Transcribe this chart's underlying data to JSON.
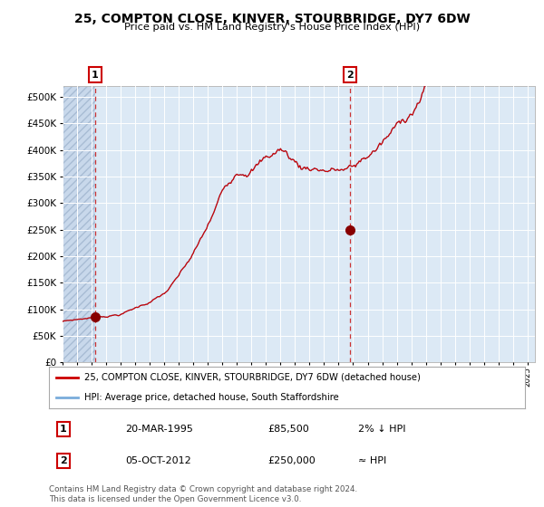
{
  "title_line1": "25, COMPTON CLOSE, KINVER, STOURBRIDGE, DY7 6DW",
  "title_line2": "Price paid vs. HM Land Registry's House Price Index (HPI)",
  "bg_color": "#dce9f5",
  "red_line_color": "#cc0000",
  "blue_line_color": "#7aaddb",
  "marker_color": "#880000",
  "vline_color": "#cc3333",
  "ylim": [
    0,
    520000
  ],
  "yticks": [
    0,
    50000,
    100000,
    150000,
    200000,
    250000,
    300000,
    350000,
    400000,
    450000,
    500000
  ],
  "ytick_labels": [
    "£0",
    "£50K",
    "£100K",
    "£150K",
    "£200K",
    "£250K",
    "£300K",
    "£350K",
    "£400K",
    "£450K",
    "£500K"
  ],
  "xlim_start": 1993.0,
  "xlim_end": 2025.5,
  "sale1_x": 1995.22,
  "sale1_y": 85500,
  "sale2_x": 2012.77,
  "sale2_y": 250000,
  "legend_label_red": "25, COMPTON CLOSE, KINVER, STOURBRIDGE, DY7 6DW (detached house)",
  "legend_label_blue": "HPI: Average price, detached house, South Staffordshire",
  "table_row1": [
    "1",
    "20-MAR-1995",
    "£85,500",
    "2% ↓ HPI"
  ],
  "table_row2": [
    "2",
    "05-OCT-2012",
    "£250,000",
    "≈ HPI"
  ],
  "footer": "Contains HM Land Registry data © Crown copyright and database right 2024.\nThis data is licensed under the Open Government Licence v3.0."
}
